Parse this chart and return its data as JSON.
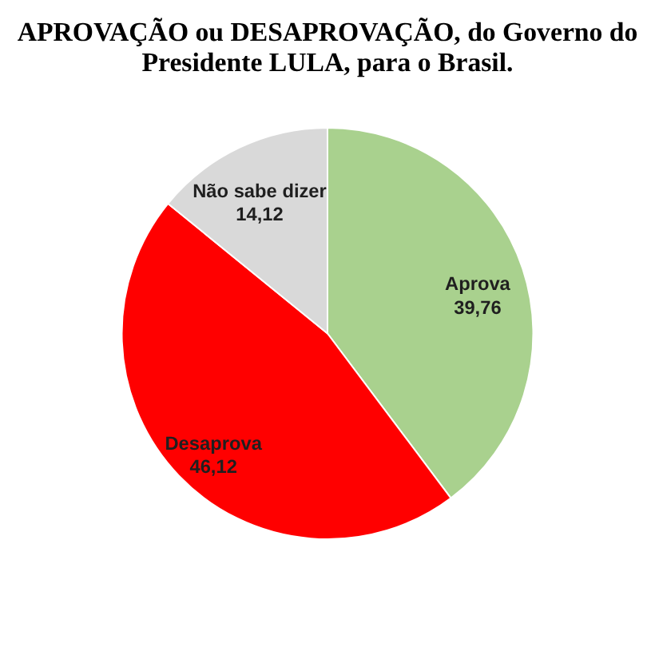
{
  "chart_data": {
    "type": "pie",
    "title": "APROVAÇÃO ou DESAPROVAÇÃO, do Governo do Presidente LULA, para o Brasil.",
    "categories": [
      "Aprova",
      "Desaprova",
      "Não sabe dizer"
    ],
    "values": [
      39.76,
      46.12,
      14.12
    ],
    "colors": [
      "#a9d18e",
      "#ff0000",
      "#d9d9d9"
    ],
    "value_labels": [
      "39,76",
      "46,12",
      "14,12"
    ]
  }
}
